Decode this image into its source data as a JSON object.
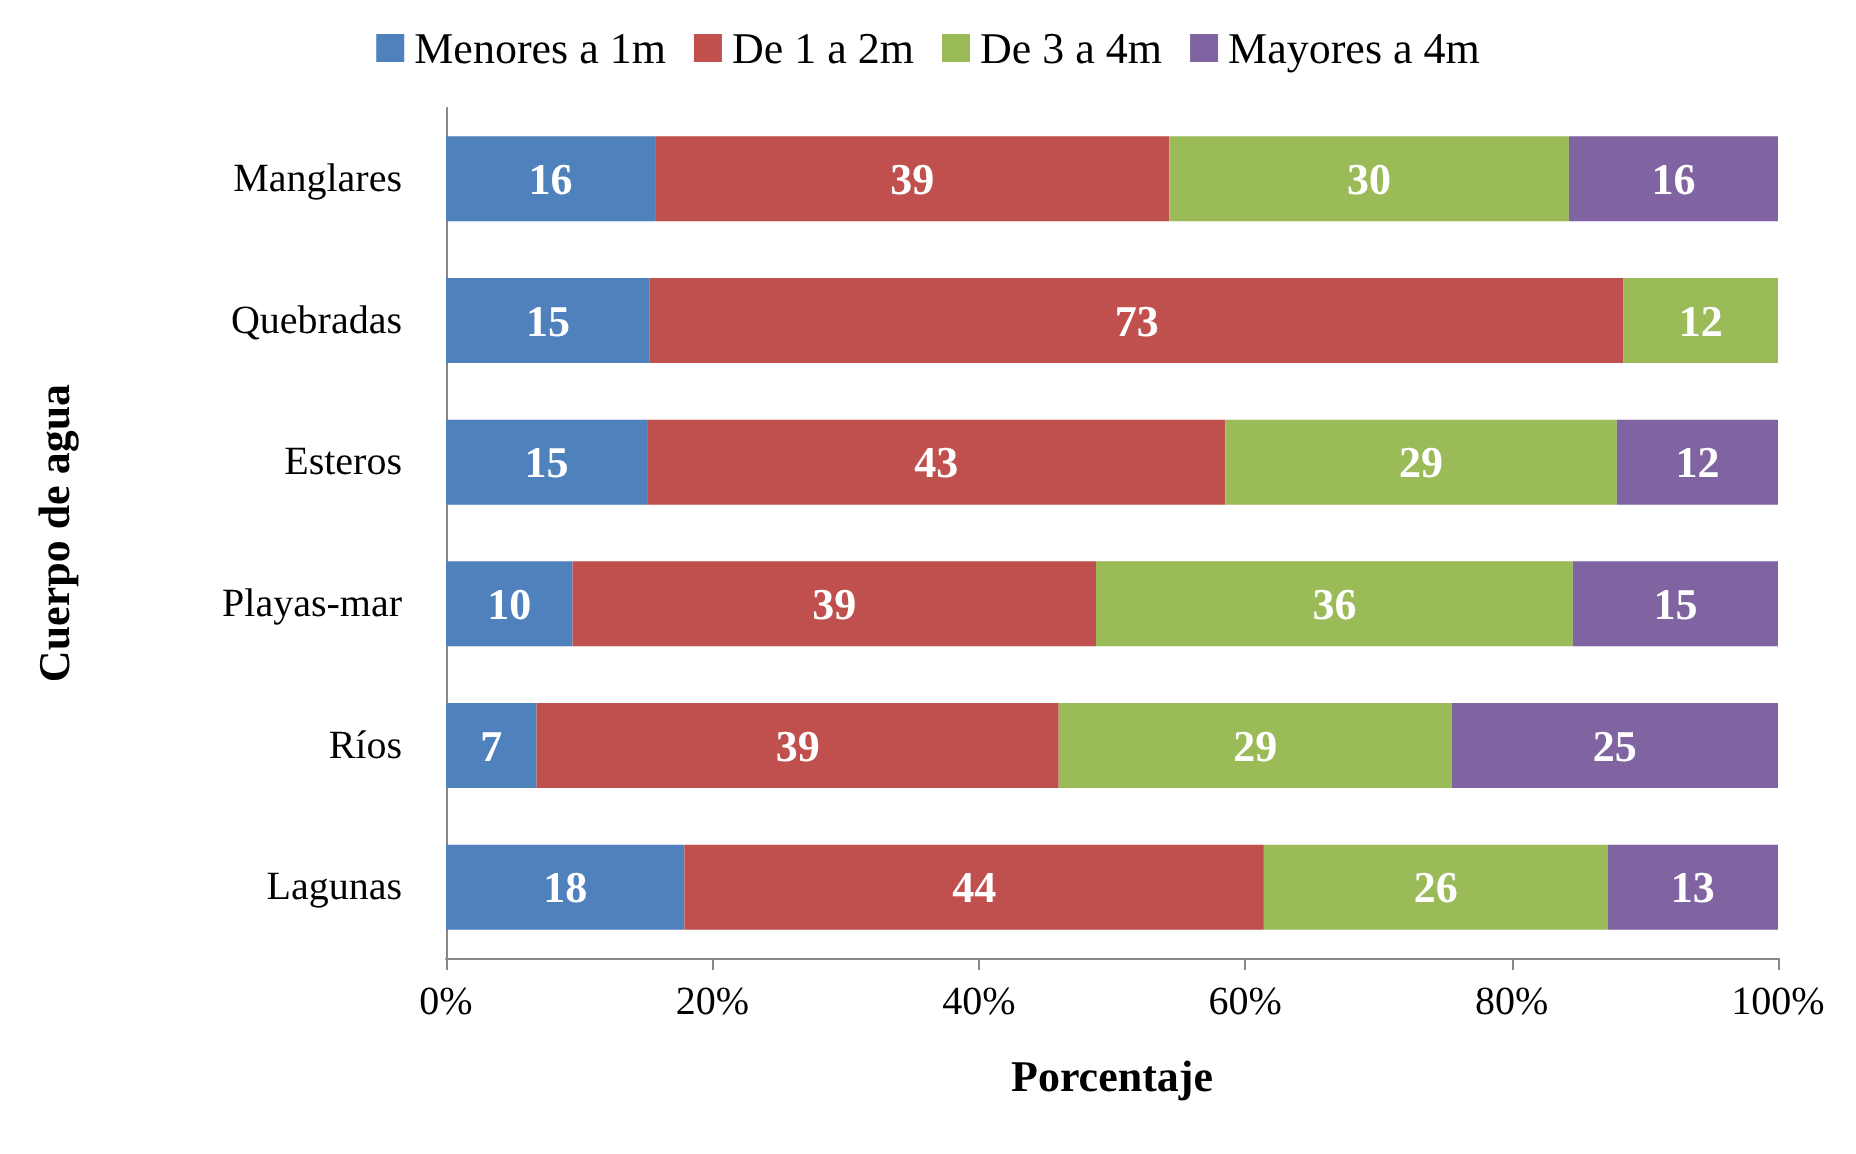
{
  "chart_data": {
    "type": "bar",
    "orientation": "horizontal",
    "stacked": true,
    "xlabel": "Porcentaje",
    "ylabel": "Cuerpo de agua",
    "legend": "top",
    "grid": false,
    "categories": [
      "Manglares",
      "Quebradas",
      "Esteros",
      "Playas-mar",
      "Ríos",
      "Lagunas"
    ],
    "xlim": [
      0,
      100
    ],
    "xticks": [
      {
        "value": 0,
        "label": "0%"
      },
      {
        "value": 20,
        "label": "20%"
      },
      {
        "value": 40,
        "label": "40%"
      },
      {
        "value": 60,
        "label": "60%"
      },
      {
        "value": 80,
        "label": "80%"
      },
      {
        "value": 100,
        "label": "100%"
      }
    ],
    "series": [
      {
        "name": "Menores a 1m",
        "color": "#4f81bd",
        "values": [
          15.7,
          15.3,
          15.1,
          9.5,
          6.8,
          17.9
        ],
        "value_labels": [
          "16",
          "15",
          "15",
          "10",
          "7",
          "18"
        ]
      },
      {
        "name": "De 1 a 2m",
        "color": "#c0504d",
        "values": [
          38.6,
          73.1,
          43.4,
          39.3,
          39.2,
          43.5
        ],
        "value_labels": [
          "39",
          "73",
          "43",
          "39",
          "39",
          "44"
        ]
      },
      {
        "name": "De 3 a 4m",
        "color": "#9bbb59",
        "values": [
          30.0,
          11.6,
          29.4,
          35.8,
          29.5,
          25.8
        ],
        "value_labels": [
          "30",
          "12",
          "29",
          "36",
          "29",
          "26"
        ]
      },
      {
        "name": "Mayores a 4m",
        "color": "#8064a2",
        "values": [
          15.7,
          null,
          12.1,
          15.4,
          24.5,
          12.8
        ],
        "value_labels": [
          "16",
          null,
          "12",
          "15",
          "25",
          "13"
        ]
      }
    ]
  }
}
